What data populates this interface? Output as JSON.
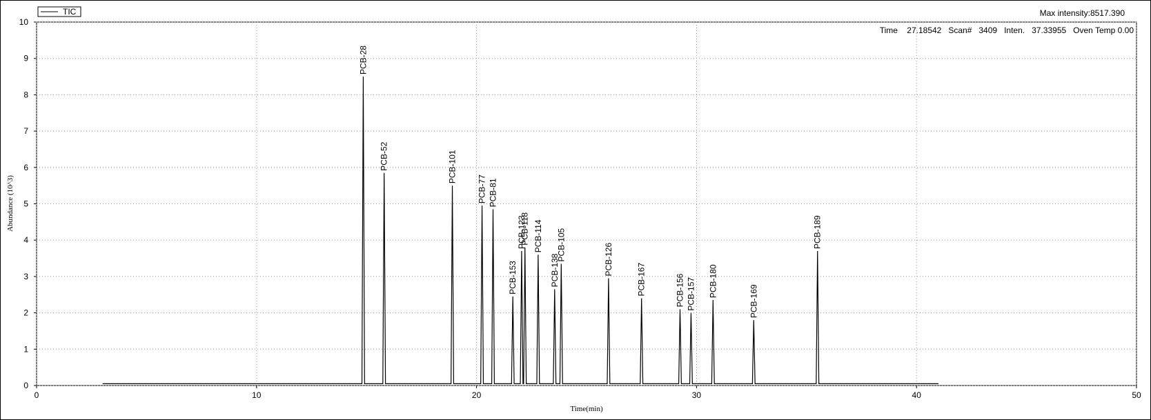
{
  "chart_data": {
    "type": "line",
    "legend_label": "TIC",
    "max_intensity": "Max intensity:8517.390",
    "status": "Time    27.18542   Scan#   3409   Inten.   37.33955   Oven Temp 0.00",
    "xlabel": "Time(min)",
    "ylabel": "Abundance (10^3)",
    "xlim": [
      0,
      50
    ],
    "xticks": [
      0,
      10,
      20,
      30,
      40,
      50
    ],
    "ylim": [
      0,
      10
    ],
    "yticks": [
      0,
      1,
      2,
      3,
      4,
      5,
      6,
      7,
      8,
      9,
      10
    ],
    "grid": true,
    "series": [
      {
        "name": "TIC",
        "color": "#000000",
        "x": [
          3,
          14.79,
          14.85,
          14.91,
          15.74,
          15.8,
          15.86,
          18.84,
          18.9,
          18.96,
          20.19,
          20.25,
          20.31,
          20.69,
          20.75,
          20.81,
          21.59,
          21.65,
          21.71,
          21.99,
          22.05,
          22.11,
          22.14,
          22.2,
          22.26,
          22.74,
          22.8,
          22.86,
          23.49,
          23.55,
          23.61,
          23.79,
          23.85,
          23.91,
          25.94,
          26.0,
          26.06,
          27.44,
          27.5,
          27.56,
          29.19,
          29.25,
          29.31,
          29.69,
          29.75,
          29.81,
          30.69,
          30.75,
          30.81,
          32.54,
          32.6,
          32.66,
          35.44,
          35.5,
          35.56,
          41
        ],
        "values": [
          0.05,
          0.05,
          8.5,
          0.05,
          0.05,
          5.85,
          0.05,
          0.05,
          5.5,
          0.05,
          0.05,
          4.95,
          0.05,
          0.05,
          4.85,
          0.05,
          0.05,
          2.45,
          0.05,
          0.05,
          3.7,
          0.05,
          0.05,
          3.8,
          0.05,
          0.05,
          3.6,
          0.05,
          0.05,
          2.65,
          0.05,
          0.05,
          3.35,
          0.05,
          0.05,
          2.95,
          0.05,
          0.05,
          2.4,
          0.05,
          0.05,
          2.1,
          0.05,
          0.05,
          2.0,
          0.05,
          0.05,
          2.35,
          0.05,
          0.05,
          1.8,
          0.05,
          0.05,
          3.7,
          0.05,
          0.05
        ],
        "labels": [
          null,
          null,
          "PCB-28",
          null,
          null,
          "PCB-52",
          null,
          null,
          "PCB-101",
          null,
          null,
          "PCB-77",
          null,
          null,
          "PCB-81",
          null,
          null,
          "PCB-153",
          null,
          null,
          "PCB-123",
          null,
          null,
          "PCB-118",
          null,
          null,
          "PCB-114",
          null,
          null,
          "PCB-138",
          null,
          null,
          "PCB-105",
          null,
          null,
          "PCB-126",
          null,
          null,
          "PCB-167",
          null,
          null,
          "PCB-156",
          null,
          null,
          "PCB-157",
          null,
          null,
          "PCB-180",
          null,
          null,
          "PCB-169",
          null,
          null,
          "PCB-189",
          null,
          null
        ]
      }
    ]
  }
}
